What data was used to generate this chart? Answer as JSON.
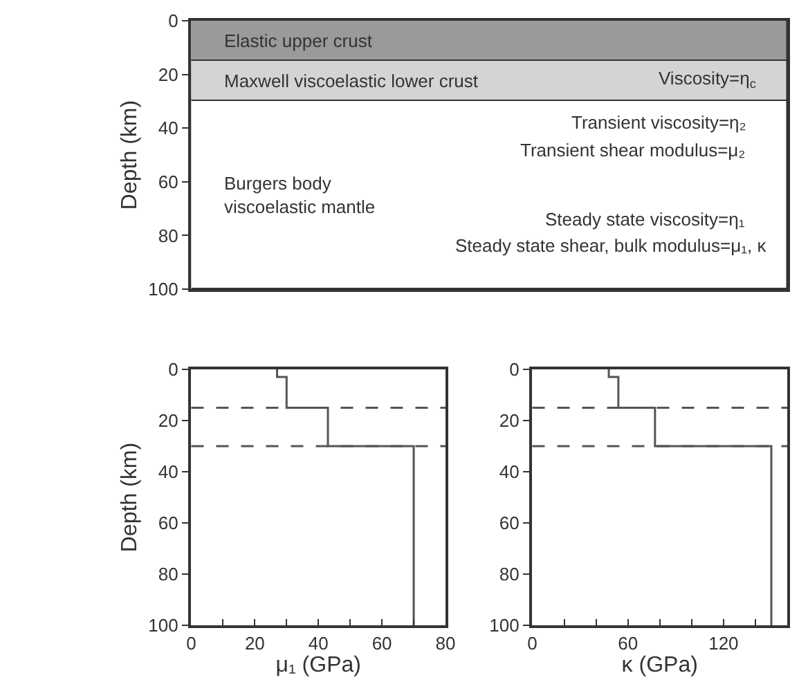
{
  "chart_data": [
    {
      "type": "bar",
      "stacked": true,
      "ylabel": "Depth (km)",
      "ylim": [
        100,
        0
      ],
      "yticks": [
        0,
        20,
        40,
        60,
        80,
        100
      ],
      "tick_labels": "y",
      "categories": [
        null
      ],
      "series": [
        {
          "name": "Elastic upper crust",
          "color": "#9a9a9a",
          "values": [
            15
          ]
        },
        {
          "name": "Maxwell viscoelastic lower crust",
          "color": "#d4d4d4",
          "values": [
            15
          ]
        },
        {
          "name": "Burgers body\nviscoelastic mantle",
          "color": "#ffffff",
          "values": [
            70
          ]
        }
      ],
      "annotations": [
        "Viscosity=η$_{c}$",
        "Transient viscosity=η₂",
        "Transient shear modulus=μ₂",
        "Steady state viscosity=η₁",
        "Steady state shear, bulk modulus=μ₁, κ"
      ]
    },
    {
      "type": "line",
      "ylabel": "Depth (km)",
      "xlabel": "μ₁ (GPa)",
      "xlim": [
        0,
        80
      ],
      "xticks": [
        0,
        {
          "value": 10,
          "label": null
        },
        20,
        {
          "value": 30,
          "label": null
        },
        40,
        {
          "value": 50,
          "label": null
        },
        60,
        {
          "value": 70,
          "label": null
        },
        80
      ],
      "ylim": [
        100,
        0
      ],
      "yticks": [
        0,
        20,
        40,
        60,
        80,
        100
      ],
      "marker": "none",
      "line_style": "solid",
      "series": [
        {
          "color": "#555555",
          "x": [
            27,
            27,
            30,
            30,
            43,
            43,
            70,
            70
          ],
          "values": [
            0,
            3,
            3,
            15,
            15,
            30,
            30,
            100
          ]
        }
      ],
      "ref_lines": [
        {
          "axis": "y",
          "value": 15,
          "color": "#555555",
          "line_style": "dashed"
        },
        {
          "axis": "y",
          "value": 30,
          "color": "#555555",
          "line_style": "dashed"
        }
      ]
    },
    {
      "type": "line",
      "xlabel": "κ (GPa)",
      "xlim": [
        0,
        160
      ],
      "xticks": [
        0,
        {
          "value": 20,
          "label": null
        },
        {
          "value": 40,
          "label": null
        },
        60,
        {
          "value": 80,
          "label": null
        },
        {
          "value": 100,
          "label": null
        },
        120,
        {
          "value": 140,
          "label": null
        }
      ],
      "ylim": [
        100,
        0
      ],
      "yticks": [
        0,
        20,
        40,
        60,
        80,
        100
      ],
      "marker": "none",
      "line_style": "solid",
      "series": [
        {
          "color": "#555555",
          "x": [
            48,
            48,
            54,
            54,
            77,
            77,
            150,
            150
          ],
          "values": [
            0,
            3,
            3,
            15,
            15,
            30,
            30,
            100
          ]
        }
      ],
      "ref_lines": [
        {
          "axis": "y",
          "value": 15,
          "color": "#555555",
          "line_style": "dashed"
        },
        {
          "axis": "y",
          "value": 30,
          "color": "#555555",
          "line_style": "dashed"
        }
      ]
    }
  ]
}
